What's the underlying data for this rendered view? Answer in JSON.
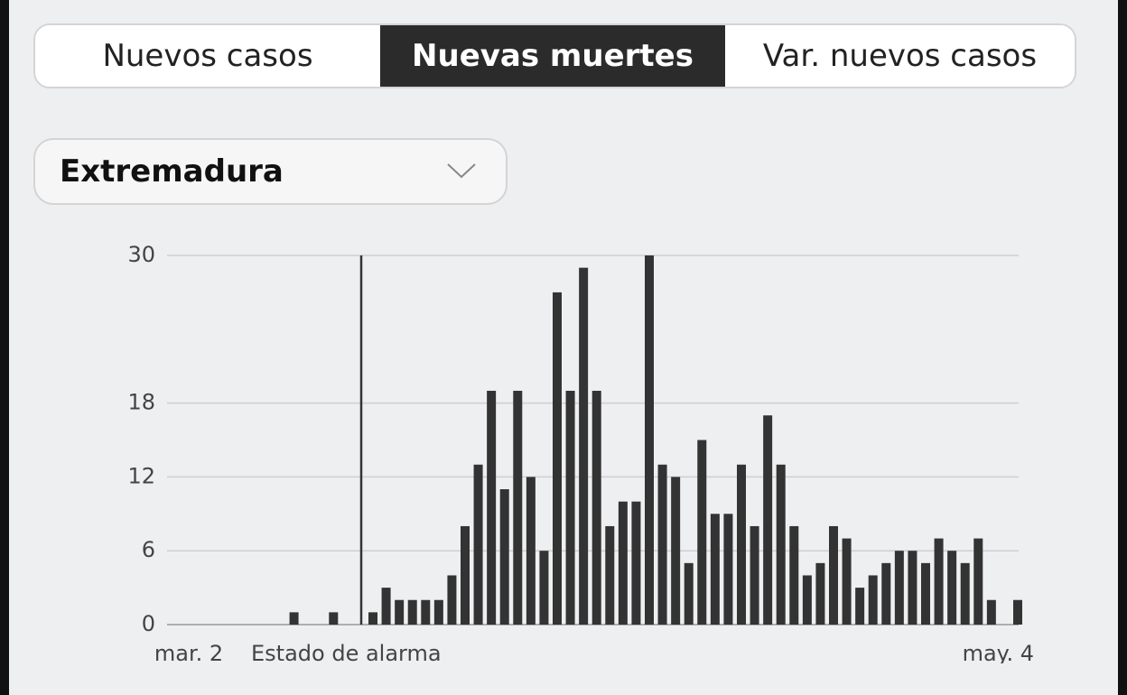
{
  "tabs": [
    "Nuevos casos",
    "Nuevas muertes",
    "Var. nuevos casos"
  ],
  "active_tab": 1,
  "dropdown": {
    "label": "Extremadura"
  },
  "chart_data": {
    "type": "bar",
    "annotation": "Estado de alarma",
    "categories": [
      "mar. 2",
      null,
      null,
      null,
      null,
      null,
      null,
      null,
      null,
      null,
      null,
      null,
      null,
      null,
      null,
      null,
      null,
      null,
      null,
      null,
      null,
      null,
      null,
      null,
      null,
      null,
      null,
      null,
      null,
      null,
      null,
      null,
      null,
      null,
      null,
      null,
      null,
      null,
      null,
      null,
      null,
      null,
      null,
      null,
      null,
      null,
      null,
      null,
      null,
      null,
      null,
      null,
      null,
      null,
      null,
      null,
      null,
      null,
      null,
      null,
      null,
      null,
      null,
      "may. 4"
    ],
    "values": [
      0,
      0,
      0,
      0,
      0,
      0,
      0,
      0,
      1,
      0,
      0,
      1,
      0,
      0,
      1,
      3,
      2,
      2,
      2,
      2,
      4,
      8,
      13,
      19,
      11,
      19,
      12,
      6,
      27,
      19,
      29,
      19,
      8,
      10,
      10,
      30,
      13,
      12,
      5,
      15,
      9,
      9,
      13,
      8,
      17,
      13,
      8,
      4,
      5,
      8,
      7,
      3,
      4,
      5,
      6,
      6,
      5,
      7,
      6,
      5,
      7,
      2,
      0,
      2
    ],
    "color": "#333333",
    "ylim": [
      0,
      30
    ],
    "yticks": [
      0,
      6,
      12,
      18,
      30
    ],
    "grid": true
  }
}
